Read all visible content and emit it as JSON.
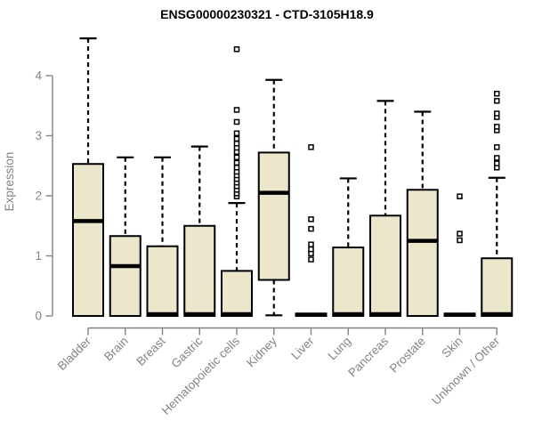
{
  "title": "ENSG00000230321 - CTD-3105H18.9",
  "chart_data": {
    "type": "boxplot",
    "title": "ENSG00000230321 - CTD-3105H18.9",
    "xlabel": "",
    "ylabel": "Expression",
    "ylim": [
      0,
      4.65
    ],
    "yticks": [
      0,
      1,
      2,
      3,
      4
    ],
    "grid": false,
    "legend": "none",
    "categories": [
      "Bladder",
      "Brain",
      "Breast",
      "Gastric",
      "Hematopoietic cells",
      "Kidney",
      "Liver",
      "Lung",
      "Pancreas",
      "Prostate",
      "Skin",
      "Unknown / Other"
    ],
    "series": [
      {
        "label": "Bladder",
        "whisker_low": 0,
        "q1": 0,
        "median": 1.58,
        "q3": 2.53,
        "whisker_high": 4.62,
        "outliers": []
      },
      {
        "label": "Brain",
        "whisker_low": 0,
        "q1": 0,
        "median": 0.83,
        "q3": 1.33,
        "whisker_high": 2.64,
        "outliers": []
      },
      {
        "label": "Breast",
        "whisker_low": 0,
        "q1": 0,
        "median": 0.03,
        "q3": 1.16,
        "whisker_high": 2.64,
        "outliers": []
      },
      {
        "label": "Gastric",
        "whisker_low": 0,
        "q1": 0,
        "median": 0.03,
        "q3": 1.5,
        "whisker_high": 2.82,
        "outliers": []
      },
      {
        "label": "Hematopoietic cells",
        "whisker_low": 0,
        "q1": 0,
        "median": 0.03,
        "q3": 0.75,
        "whisker_high": 1.88,
        "outliers": [
          1.99,
          2.04,
          2.1,
          2.16,
          2.22,
          2.28,
          2.34,
          2.4,
          2.47,
          2.55,
          2.64,
          2.73,
          2.8,
          2.87,
          2.95,
          3.04,
          3.23,
          3.43,
          4.44
        ]
      },
      {
        "label": "Kidney",
        "whisker_low": 0.01,
        "q1": 0.6,
        "median": 2.05,
        "q3": 2.72,
        "whisker_high": 3.93,
        "outliers": []
      },
      {
        "label": "Liver",
        "whisker_low": 0,
        "q1": 0,
        "median": 0.02,
        "q3": 0.04,
        "whisker_high": 0.04,
        "outliers": [
          0.94,
          1.04,
          1.11,
          1.19,
          1.45,
          1.61,
          2.81
        ]
      },
      {
        "label": "Lung",
        "whisker_low": 0,
        "q1": 0,
        "median": 0.03,
        "q3": 1.14,
        "whisker_high": 2.29,
        "outliers": []
      },
      {
        "label": "Pancreas",
        "whisker_low": 0,
        "q1": 0,
        "median": 0.03,
        "q3": 1.67,
        "whisker_high": 3.58,
        "outliers": []
      },
      {
        "label": "Prostate",
        "whisker_low": 0,
        "q1": 0,
        "median": 1.25,
        "q3": 2.1,
        "whisker_high": 3.4,
        "outliers": []
      },
      {
        "label": "Skin",
        "whisker_low": 0,
        "q1": 0,
        "median": 0.02,
        "q3": 0.04,
        "whisker_high": 0.04,
        "outliers": [
          1.26,
          1.37,
          1.99
        ]
      },
      {
        "label": "Unknown / Other",
        "whisker_low": 0,
        "q1": 0,
        "median": 0.03,
        "q3": 0.96,
        "whisker_high": 2.3,
        "outliers": [
          2.47,
          2.54,
          2.63,
          2.81,
          3.09,
          3.15,
          3.31,
          3.37,
          3.58,
          3.7
        ]
      }
    ],
    "colors": {
      "box_fill": "#ece7cb",
      "box_stroke": "#000000",
      "median": "#000000",
      "whisker": "#000000",
      "outlier_fill": "#ffffff",
      "outlier_stroke": "#000000",
      "axis": "#828282",
      "tick_text": "#848484",
      "title_text": "#000000",
      "background": "#ffffff"
    }
  }
}
